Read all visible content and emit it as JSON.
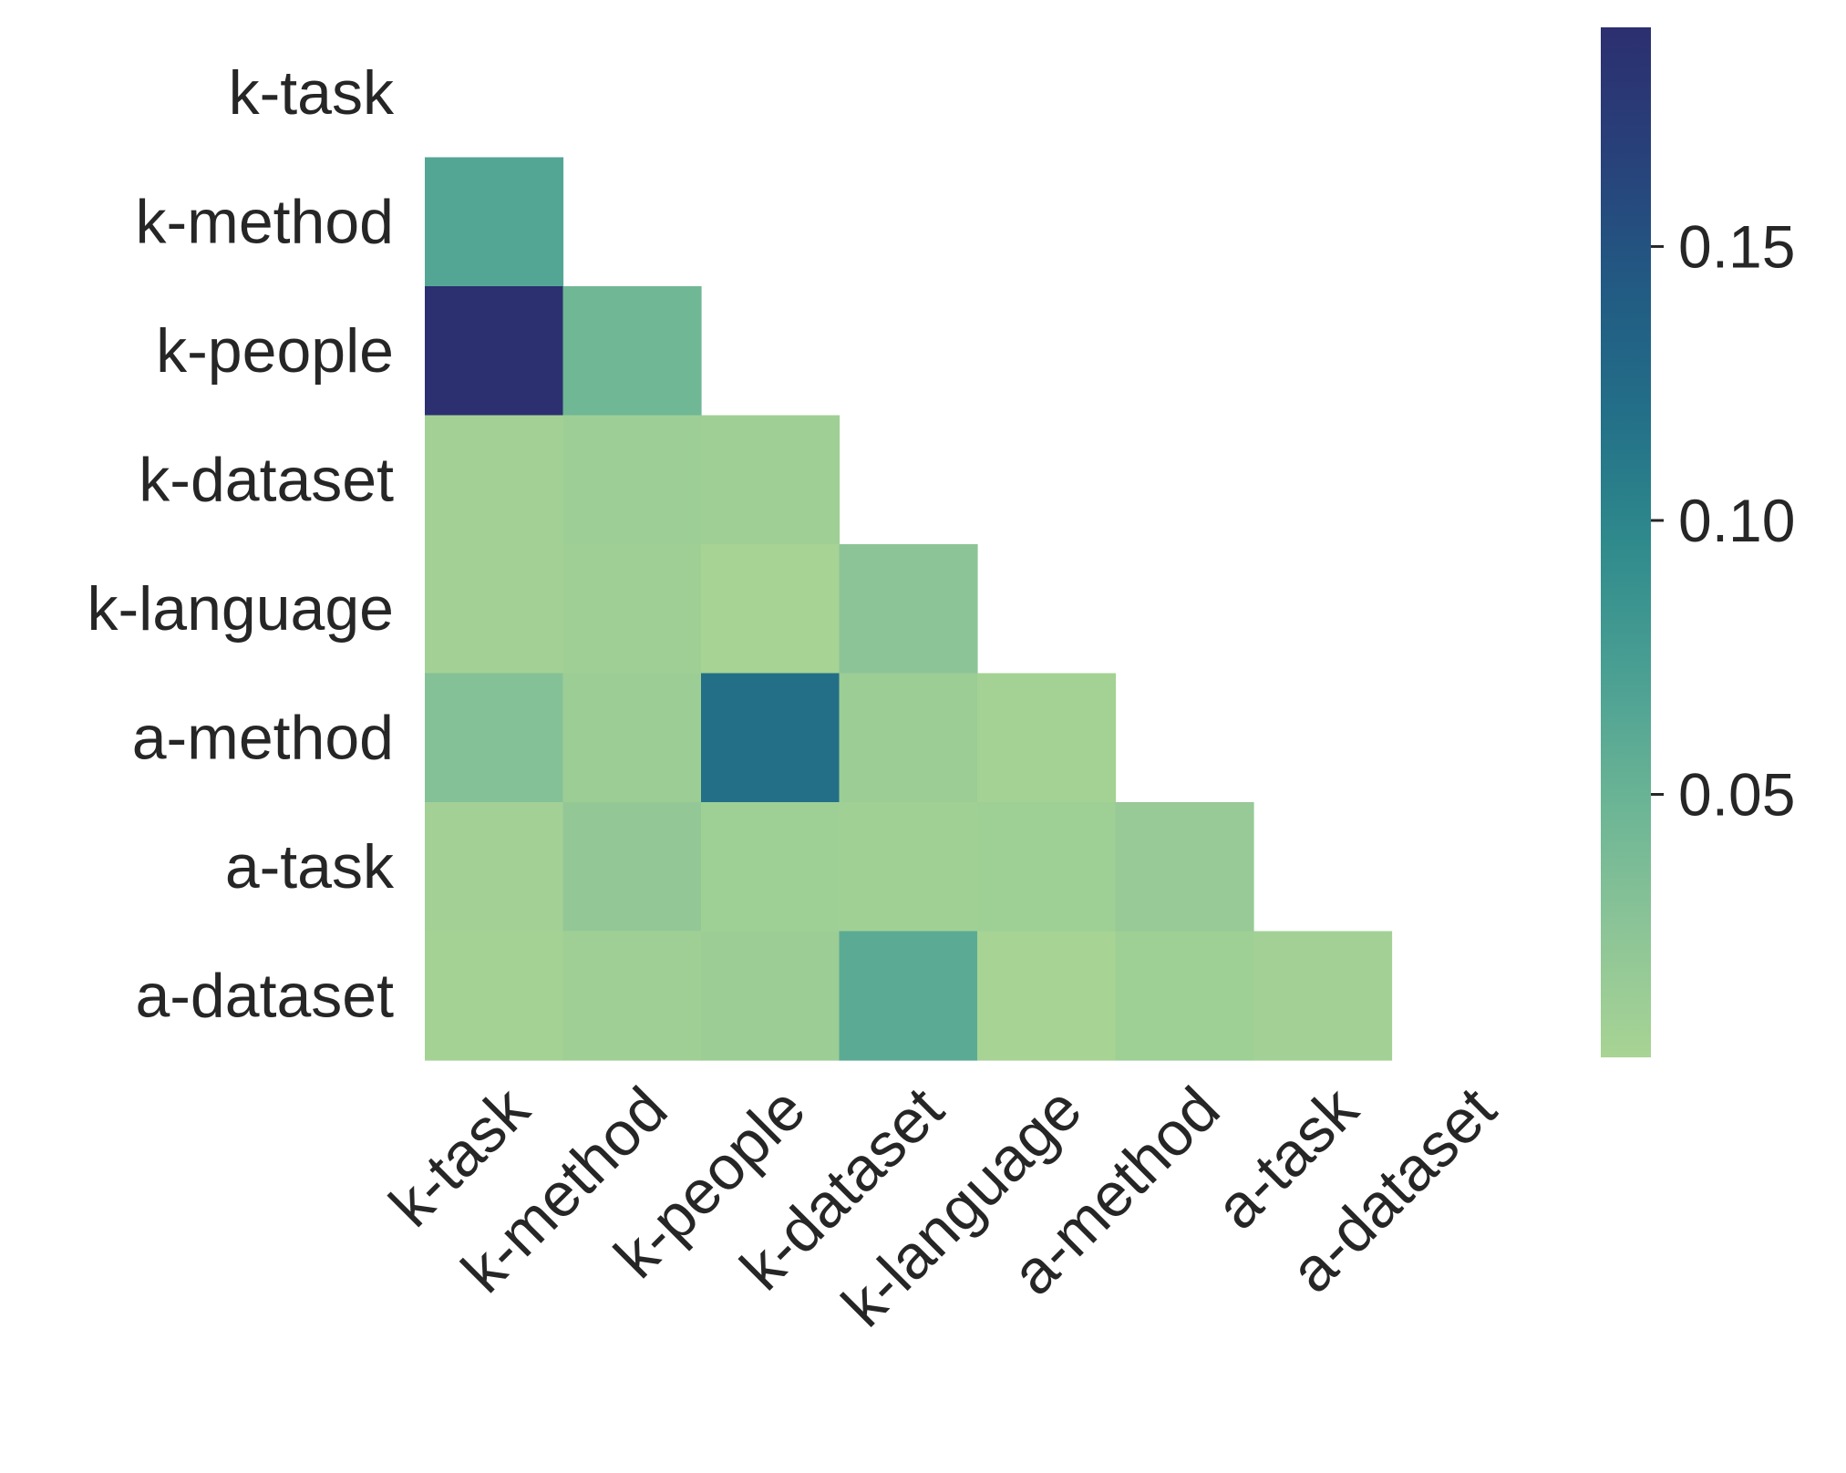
{
  "chart_data": {
    "type": "heatmap",
    "mask": "upper-triangle",
    "row_labels": [
      "k-task",
      "k-method",
      "k-people",
      "k-dataset",
      "k-language",
      "a-method",
      "a-task",
      "a-dataset"
    ],
    "col_labels": [
      "k-task",
      "k-method",
      "k-people",
      "k-dataset",
      "k-language",
      "a-method",
      "a-task",
      "a-dataset"
    ],
    "values": [
      [
        null,
        null,
        null,
        null,
        null,
        null,
        null,
        null
      ],
      [
        0.065,
        null,
        null,
        null,
        null,
        null,
        null,
        null
      ],
      [
        0.19,
        0.045,
        null,
        null,
        null,
        null,
        null,
        null
      ],
      [
        0.006,
        0.011,
        0.009,
        null,
        null,
        null,
        null,
        null
      ],
      [
        0.006,
        0.009,
        0.003,
        0.025,
        null,
        null,
        null,
        null
      ],
      [
        0.03,
        0.012,
        0.12,
        0.013,
        0.005,
        null,
        null,
        null
      ],
      [
        0.006,
        0.02,
        0.01,
        0.008,
        0.01,
        0.016,
        null,
        null
      ],
      [
        0.005,
        0.009,
        0.012,
        0.06,
        0.003,
        0.01,
        0.006,
        null
      ]
    ],
    "colorbar": {
      "vmin": 0.002,
      "vmax": 0.19,
      "ticks": [
        0.05,
        0.1,
        0.15
      ],
      "tick_labels": [
        "0.05",
        "0.10",
        "0.15"
      ]
    },
    "colormap": [
      "#a8d494",
      "#8cc497",
      "#6ab495",
      "#4a9f93",
      "#2f8a8c",
      "#236f88",
      "#225a83",
      "#28417a",
      "#2c2f70"
    ]
  }
}
